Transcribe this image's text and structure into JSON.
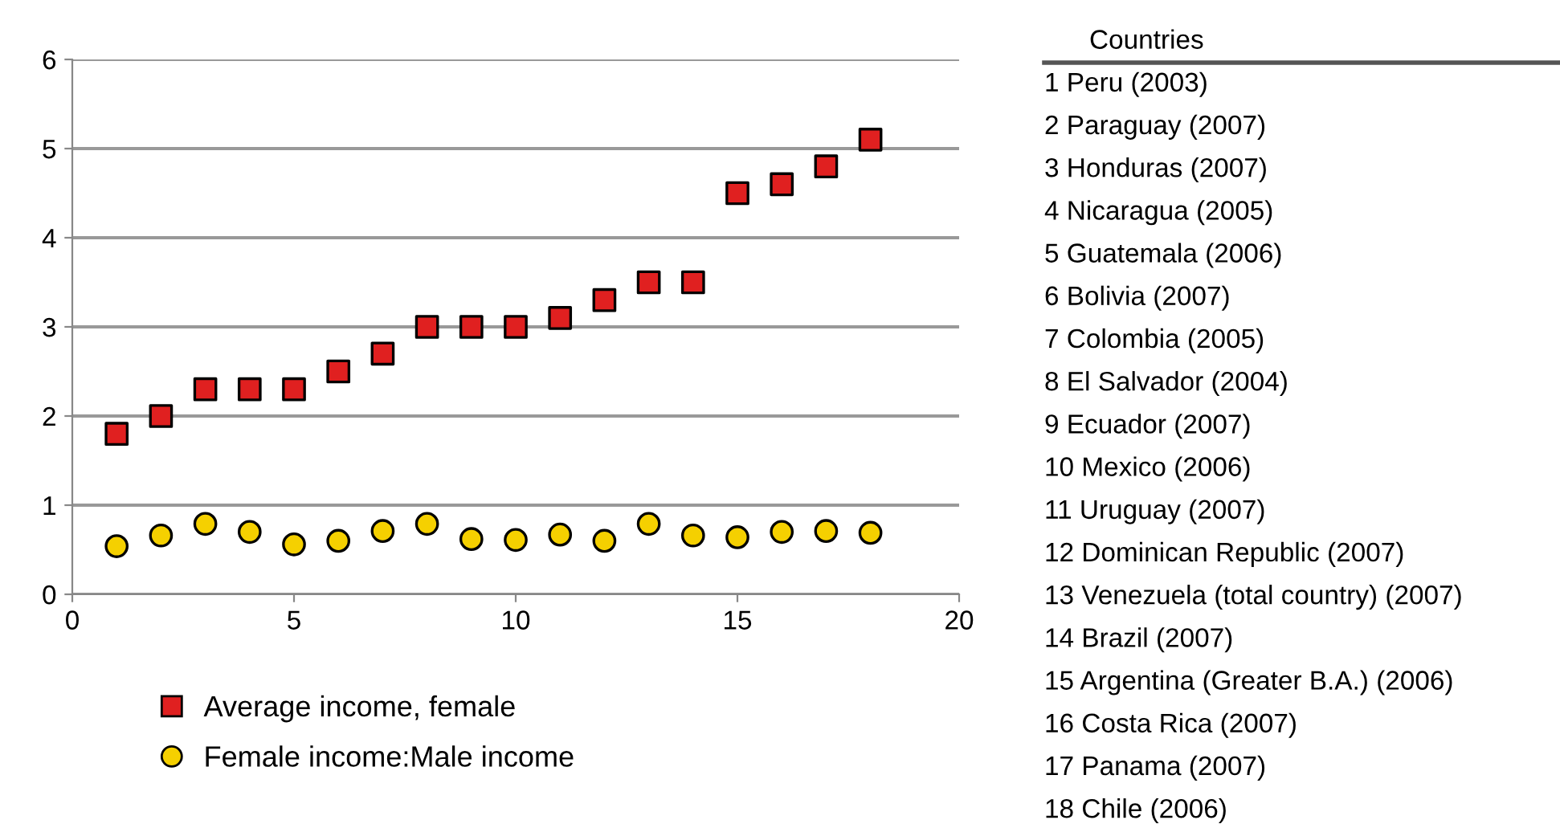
{
  "chart_data": {
    "type": "scatter",
    "x": [
      1,
      2,
      3,
      4,
      5,
      6,
      7,
      8,
      9,
      10,
      11,
      12,
      13,
      14,
      15,
      16,
      17,
      18
    ],
    "series": [
      {
        "name": "Average income, female",
        "color": "#e02020",
        "marker": "square",
        "values": [
          1.8,
          2.0,
          2.3,
          2.3,
          2.3,
          2.5,
          2.7,
          3.0,
          3.0,
          3.0,
          3.1,
          3.3,
          3.5,
          3.5,
          4.5,
          4.6,
          4.8,
          5.1
        ]
      },
      {
        "name": "Female income:Male income",
        "color": "#f5d000",
        "marker": "circle",
        "values": [
          0.54,
          0.66,
          0.79,
          0.7,
          0.56,
          0.6,
          0.71,
          0.79,
          0.62,
          0.61,
          0.67,
          0.6,
          0.79,
          0.66,
          0.64,
          0.7,
          0.71,
          0.69
        ]
      }
    ],
    "xlim": [
      0,
      20
    ],
    "xticks": [
      0,
      5,
      10,
      15,
      20
    ],
    "ylim": [
      0,
      6
    ],
    "yticks": [
      0,
      1,
      2,
      3,
      4,
      5,
      6
    ],
    "grid": "y",
    "legend": "bottom",
    "annotations": [
      "Countries",
      "1 Peru (2003)",
      "2 Paraguay (2007)",
      "3 Honduras (2007)",
      "4 Nicaragua (2005)",
      "5 Guatemala (2006)",
      "6 Bolivia (2007)",
      "7 Colombia (2005)",
      "8 El Salvador (2004)",
      "9 Ecuador (2007)",
      "10 Mexico (2006)",
      "11 Uruguay (2007)",
      "12 Dominican Republic (2007)",
      "13 Venezuela (total country) (2007)",
      "14 Brazil (2007)",
      "15 Argentina (Greater B.A.) (2006)",
      "16 Costa Rica (2007)",
      "17 Panama (2007)",
      "18 Chile (2006)"
    ]
  }
}
